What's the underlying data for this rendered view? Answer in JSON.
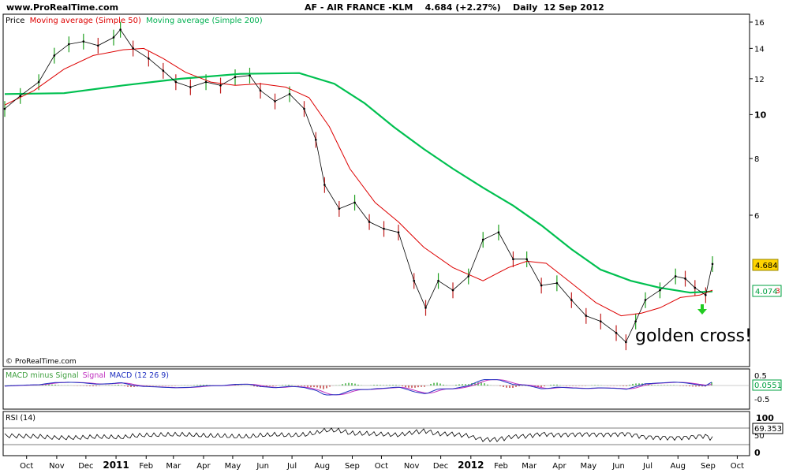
{
  "header": {
    "site": "www.ProRealTime.com",
    "title": "AF - AIR FRANCE -KLM    4.684 (+2.27%)    Daily  12 Sep 2012"
  },
  "price_panel": {
    "legend_price": "Price",
    "legend_ma50": "Moving average (Simple 50)",
    "legend_ma200": "Moving average (Simple 200)",
    "copyright": "© ProRealTime.com",
    "annotation": "golden cross!",
    "last_price_label": "4.684",
    "ma_label": "4.074",
    "ma_label_suffix": "3"
  },
  "macd_panel": {
    "legend_hist": "MACD minus Signal",
    "legend_signal": "Signal",
    "legend_macd": "MACD (12 26 9)",
    "value_label": "0.0551",
    "axis_ticks": [
      "0.5",
      "-0.5"
    ]
  },
  "rsi_panel": {
    "legend": "RSI (14)",
    "value_label": "69.353",
    "axis_ticks": [
      "100",
      "50",
      "0"
    ]
  },
  "colors": {
    "price": "#000000",
    "ma50": "#dd0000",
    "ma200": "#00c050",
    "macd": "#2030c0",
    "signal": "#c030c0",
    "hist_pos": "#40b040",
    "hist_neg": "#c04040",
    "arrow": "#22cc22",
    "last_price_bg": "#ffd400"
  },
  "chart_data": {
    "type": "line",
    "title": "AF - AIR FRANCE -KLM    4.684 (+2.27%)    Daily  12 Sep 2012",
    "y_scale": "log",
    "ylim": [
      3.3,
      16.5
    ],
    "y_ticks": [
      "16",
      "14",
      "12",
      "10",
      "8",
      "6"
    ],
    "x_ticks": [
      "Oct",
      "Nov",
      "Dec",
      "2011",
      "Feb",
      "Mar",
      "Apr",
      "May",
      "Jun",
      "Jul",
      "Aug",
      "Sep",
      "Oct",
      "Nov",
      "Dec",
      "2012",
      "Feb",
      "Mar",
      "Apr",
      "May",
      "Jun",
      "Jul",
      "Aug",
      "Sep",
      "Oct"
    ],
    "series": [
      {
        "name": "Price",
        "x": [
          "2010-09-15",
          "2010-10-01",
          "2010-10-20",
          "2010-11-05",
          "2010-11-20",
          "2010-12-05",
          "2010-12-20",
          "2011-01-05",
          "2011-01-12",
          "2011-01-25",
          "2011-02-10",
          "2011-02-25",
          "2011-03-10",
          "2011-03-25",
          "2011-04-10",
          "2011-04-25",
          "2011-05-10",
          "2011-05-25",
          "2011-06-05",
          "2011-06-20",
          "2011-07-05",
          "2011-07-20",
          "2011-08-01",
          "2011-08-10",
          "2011-08-25",
          "2011-09-10",
          "2011-09-25",
          "2011-10-10",
          "2011-10-25",
          "2011-11-10",
          "2011-11-22",
          "2011-12-05",
          "2011-12-20",
          "2012-01-05",
          "2012-01-20",
          "2012-02-05",
          "2012-02-20",
          "2012-03-05",
          "2012-03-20",
          "2012-04-05",
          "2012-04-20",
          "2012-05-05",
          "2012-05-20",
          "2012-06-05",
          "2012-06-15",
          "2012-06-25",
          "2012-07-05",
          "2012-07-20",
          "2012-08-05",
          "2012-08-15",
          "2012-08-25",
          "2012-09-05",
          "2012-09-12"
        ],
        "values": [
          10.3,
          11.0,
          11.8,
          13.5,
          14.3,
          14.5,
          14.2,
          14.8,
          15.4,
          14.0,
          13.3,
          12.5,
          11.8,
          11.5,
          11.8,
          11.6,
          12.1,
          12.2,
          11.3,
          10.7,
          11.1,
          10.3,
          8.8,
          7.0,
          6.2,
          6.4,
          5.8,
          5.6,
          5.5,
          4.3,
          3.75,
          4.3,
          4.1,
          4.4,
          5.3,
          5.5,
          4.8,
          4.8,
          4.2,
          4.25,
          3.9,
          3.6,
          3.5,
          3.3,
          3.15,
          3.5,
          3.9,
          4.1,
          4.4,
          4.35,
          4.15,
          4.0,
          4.684
        ]
      },
      {
        "name": "Moving average (Simple 50)",
        "x": [
          "2010-09-15",
          "2010-10-15",
          "2010-11-15",
          "2010-12-15",
          "2011-01-15",
          "2011-02-05",
          "2011-02-25",
          "2011-03-20",
          "2011-04-15",
          "2011-05-10",
          "2011-06-05",
          "2011-07-01",
          "2011-07-25",
          "2011-08-15",
          "2011-09-05",
          "2011-10-01",
          "2011-10-25",
          "2011-11-20",
          "2011-12-20",
          "2012-01-20",
          "2012-02-15",
          "2012-03-05",
          "2012-03-25",
          "2012-04-20",
          "2012-05-15",
          "2012-06-10",
          "2012-07-01",
          "2012-07-20",
          "2012-08-10",
          "2012-08-30",
          "2012-09-12"
        ],
        "values": [
          10.5,
          11.3,
          12.6,
          13.5,
          13.9,
          14.0,
          13.3,
          12.4,
          11.8,
          11.6,
          11.7,
          11.5,
          10.9,
          9.4,
          7.6,
          6.4,
          5.8,
          5.1,
          4.6,
          4.3,
          4.6,
          4.75,
          4.7,
          4.25,
          3.85,
          3.6,
          3.65,
          3.75,
          3.95,
          4.0,
          4.1
        ]
      },
      {
        "name": "Moving average (Simple 200)",
        "x": [
          "2010-09-15",
          "2010-11-15",
          "2011-01-15",
          "2011-03-15",
          "2011-05-15",
          "2011-07-15",
          "2011-08-20",
          "2011-09-20",
          "2011-10-20",
          "2011-11-20",
          "2011-12-20",
          "2012-01-20",
          "2012-02-20",
          "2012-03-20",
          "2012-04-20",
          "2012-05-20",
          "2012-06-20",
          "2012-07-20",
          "2012-08-20",
          "2012-09-12"
        ],
        "values": [
          11.1,
          11.15,
          11.6,
          12.0,
          12.3,
          12.35,
          11.7,
          10.6,
          9.4,
          8.4,
          7.6,
          6.9,
          6.3,
          5.7,
          5.05,
          4.55,
          4.3,
          4.15,
          4.05,
          4.074
        ]
      }
    ],
    "subcharts": [
      {
        "name": "MACD (12 26 9)",
        "ylim": [
          -0.9,
          0.7
        ],
        "ticks": [
          0.5,
          -0.5
        ],
        "last_value": 0.0551
      },
      {
        "name": "RSI (14)",
        "ylim": [
          0,
          100
        ],
        "ticks": [
          100,
          50,
          0
        ],
        "last_value": 69.353
      }
    ]
  }
}
